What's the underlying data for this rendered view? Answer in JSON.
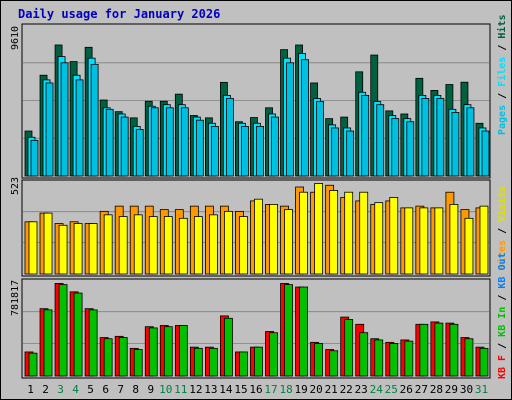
{
  "title": "Daily usage for January 2026",
  "colors": {
    "background": "#c0c0c0",
    "title": "#0000c0",
    "weekday": "#000000",
    "weekend": "#008040",
    "hits": "#006040",
    "files": "#00e0ff",
    "pages": "#00c0e0",
    "sites": "#ff9900",
    "visits": "#ffff00",
    "kb_f": "#ff0000",
    "kb_in": "#00c000",
    "kb_out": "#0080ff"
  },
  "chart_data": [
    {
      "type": "bar",
      "panel": "hits-files-pages",
      "ymax_label": "9610",
      "ymax": 9610,
      "categories": [
        "1",
        "2",
        "3",
        "4",
        "5",
        "6",
        "7",
        "8",
        "9",
        "10",
        "11",
        "12",
        "13",
        "14",
        "15",
        "16",
        "17",
        "18",
        "19",
        "20",
        "21",
        "22",
        "23",
        "24",
        "25",
        "26",
        "27",
        "28",
        "29",
        "30",
        "31"
      ],
      "weekend_days": [
        "3",
        "4",
        "10",
        "11",
        "17",
        "18",
        "24",
        "25",
        "31"
      ],
      "series": [
        {
          "name": "Hits",
          "color": "#006040",
          "values": [
            2900,
            6500,
            8450,
            7380,
            8300,
            4900,
            4150,
            3750,
            4820,
            4820,
            5280,
            3900,
            3750,
            6040,
            3500,
            3770,
            4400,
            8150,
            8450,
            6000,
            3700,
            3800,
            6720,
            7800,
            4200,
            4000,
            6300,
            5520,
            5900,
            6050,
            3400
          ]
        },
        {
          "name": "Files",
          "color": "#00e0ff",
          "values": [
            2500,
            6200,
            7700,
            6500,
            7600,
            4400,
            4000,
            3200,
            4500,
            4600,
            4600,
            3800,
            3400,
            5200,
            3400,
            3400,
            4000,
            7600,
            7900,
            5000,
            3300,
            3100,
            5400,
            4800,
            3900,
            3700,
            5200,
            5200,
            4300,
            4600,
            3100
          ]
        },
        {
          "name": "Pages",
          "color": "#00c0e0",
          "values": [
            2300,
            6000,
            7300,
            6200,
            7200,
            4300,
            3800,
            3000,
            4400,
            4400,
            4400,
            3600,
            3200,
            5000,
            3200,
            3200,
            3800,
            7300,
            7500,
            4800,
            3100,
            2900,
            5200,
            4600,
            3700,
            3500,
            5000,
            5000,
            4100,
            4400,
            2900
          ]
        }
      ]
    },
    {
      "type": "bar",
      "panel": "sites-visits",
      "ymax_label": "523",
      "ymax": 523,
      "categories": [
        "1",
        "2",
        "3",
        "4",
        "5",
        "6",
        "7",
        "8",
        "9",
        "10",
        "11",
        "12",
        "13",
        "14",
        "15",
        "16",
        "17",
        "18",
        "19",
        "20",
        "21",
        "22",
        "23",
        "24",
        "25",
        "26",
        "27",
        "28",
        "29",
        "30",
        "31"
      ],
      "series": [
        {
          "name": "Sites",
          "color": "#ff9900",
          "values": [
            300,
            350,
            290,
            300,
            290,
            360,
            390,
            390,
            390,
            370,
            370,
            390,
            390,
            390,
            360,
            420,
            400,
            390,
            500,
            470,
            510,
            440,
            420,
            400,
            420,
            380,
            390,
            380,
            470,
            370,
            380
          ]
        },
        {
          "name": "Visits",
          "color": "#ffff00",
          "values": [
            300,
            350,
            280,
            290,
            290,
            340,
            330,
            340,
            330,
            330,
            320,
            330,
            340,
            360,
            330,
            430,
            400,
            370,
            470,
            520,
            480,
            470,
            470,
            410,
            440,
            380,
            380,
            380,
            400,
            320,
            390
          ]
        }
      ]
    },
    {
      "type": "bar",
      "panel": "kbytes",
      "ymax_label": "781817",
      "ymax": 781817,
      "categories": [
        "1",
        "2",
        "3",
        "4",
        "5",
        "6",
        "7",
        "8",
        "9",
        "10",
        "11",
        "12",
        "13",
        "14",
        "15",
        "16",
        "17",
        "18",
        "19",
        "20",
        "21",
        "22",
        "23",
        "24",
        "25",
        "26",
        "27",
        "28",
        "29",
        "30",
        "31"
      ],
      "series": [
        {
          "name": "KB F",
          "color": "#ff0000",
          "values": [
            200000,
            560000,
            770000,
            700000,
            560000,
            320000,
            330000,
            230000,
            410000,
            420000,
            420000,
            240000,
            240000,
            500000,
            200000,
            240000,
            370000,
            770000,
            740000,
            280000,
            220000,
            490000,
            430000,
            310000,
            280000,
            300000,
            430000,
            450000,
            440000,
            320000,
            240000
          ]
        },
        {
          "name": "KB In",
          "color": "#00c000",
          "values": [
            190000,
            550000,
            760000,
            690000,
            550000,
            310000,
            320000,
            220000,
            400000,
            410000,
            420000,
            230000,
            230000,
            480000,
            200000,
            240000,
            360000,
            760000,
            740000,
            270000,
            210000,
            470000,
            360000,
            300000,
            270000,
            290000,
            430000,
            440000,
            430000,
            310000,
            230000
          ]
        }
      ]
    }
  ],
  "legend": {
    "top_right": [
      "Pages",
      "/",
      "Files",
      "/",
      "Hits"
    ],
    "middle_right": [
      "Sites",
      "/",
      "Visits"
    ],
    "bottom_right": [
      "KB F",
      "/",
      "KB In",
      "/",
      "KB Out"
    ]
  }
}
